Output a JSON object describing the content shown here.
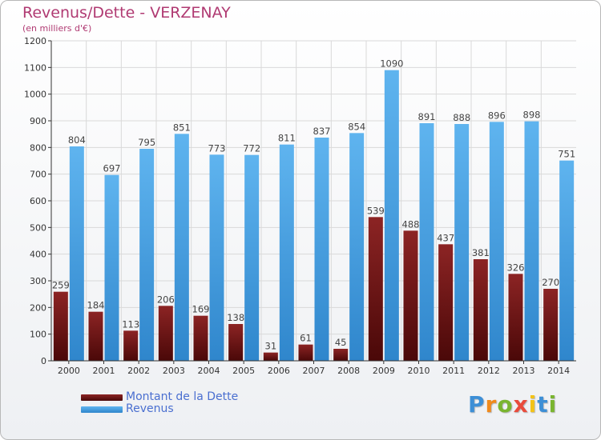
{
  "chart_data": {
    "type": "bar",
    "title": "Revenus/Dette - VERZENAY",
    "subtitle": "(en milliers d'€)",
    "categories": [
      "2000",
      "2001",
      "2002",
      "2003",
      "2004",
      "2005",
      "2006",
      "2007",
      "2008",
      "2009",
      "2010",
      "2011",
      "2012",
      "2013",
      "2014"
    ],
    "series": [
      {
        "name": "Montant de la Dette",
        "color": "#7a1a1a",
        "values": [
          259,
          184,
          113,
          206,
          169,
          138,
          31,
          61,
          45,
          539,
          488,
          437,
          381,
          326,
          270
        ]
      },
      {
        "name": "Revenus",
        "color": "#4ea6e6",
        "values": [
          804,
          697,
          795,
          851,
          773,
          772,
          811,
          837,
          854,
          1090,
          891,
          888,
          896,
          898,
          751
        ]
      }
    ],
    "ylim": [
      0,
      1200
    ],
    "yticks": [
      0,
      100,
      200,
      300,
      400,
      500,
      600,
      700,
      800,
      900,
      1000,
      1100,
      1200
    ],
    "grid": true,
    "legend_position": "bottom-left"
  },
  "logo": {
    "letters": [
      "P",
      "r",
      "o",
      "x",
      "i",
      "t",
      "i"
    ],
    "colors": [
      "#3d8fd6",
      "#f08a1c",
      "#7ab52f",
      "#e94b3c",
      "#f3c318",
      "#3d8fd6",
      "#7ab52f"
    ]
  }
}
